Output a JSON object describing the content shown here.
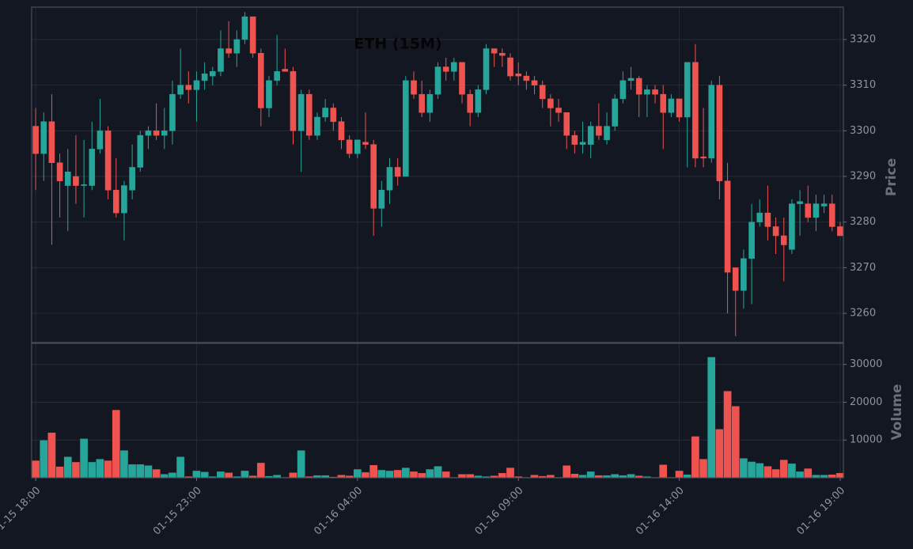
{
  "chart_data": {
    "type": "candlestick",
    "title": "ETH (15M)",
    "ylabel": "Price",
    "y2label": "Volume",
    "up_color": "#26a69a",
    "down_color": "#ef5350",
    "grid": true,
    "x": [
      "01-15 18:00",
      "01-15 18:15",
      "01-15 18:30",
      "01-15 18:45",
      "01-15 19:00",
      "01-15 19:15",
      "01-15 19:30",
      "01-15 19:45",
      "01-15 20:00",
      "01-15 20:15",
      "01-15 20:30",
      "01-15 20:45",
      "01-15 21:00",
      "01-15 21:15",
      "01-15 21:30",
      "01-15 21:45",
      "01-15 22:00",
      "01-15 22:15",
      "01-15 22:30",
      "01-15 22:45",
      "01-15 23:00",
      "01-15 23:15",
      "01-15 23:30",
      "01-15 23:45",
      "01-16 00:00",
      "01-16 00:15",
      "01-16 00:30",
      "01-16 00:45",
      "01-16 01:00",
      "01-16 01:15",
      "01-16 01:30",
      "01-16 01:45",
      "01-16 02:00",
      "01-16 02:15",
      "01-16 02:30",
      "01-16 02:45",
      "01-16 03:00",
      "01-16 03:15",
      "01-16 03:30",
      "01-16 03:45",
      "01-16 04:00",
      "01-16 04:15",
      "01-16 04:30",
      "01-16 04:45",
      "01-16 05:00",
      "01-16 05:15",
      "01-16 05:30",
      "01-16 05:45",
      "01-16 06:00",
      "01-16 06:15",
      "01-16 06:30",
      "01-16 06:45",
      "01-16 07:00",
      "01-16 07:15",
      "01-16 07:30",
      "01-16 07:45",
      "01-16 08:00",
      "01-16 08:15",
      "01-16 08:30",
      "01-16 08:45",
      "01-16 09:00",
      "01-16 09:15",
      "01-16 09:30",
      "01-16 09:45",
      "01-16 10:00",
      "01-16 10:15",
      "01-16 10:30",
      "01-16 10:45",
      "01-16 11:00",
      "01-16 11:15",
      "01-16 11:30",
      "01-16 11:45",
      "01-16 12:00",
      "01-16 12:15",
      "01-16 12:30",
      "01-16 12:45",
      "01-16 13:00",
      "01-16 13:15",
      "01-16 13:30",
      "01-16 13:45",
      "01-16 14:00",
      "01-16 14:15",
      "01-16 14:30",
      "01-16 14:45",
      "01-16 15:00",
      "01-16 15:15",
      "01-16 15:30",
      "01-16 15:45",
      "01-16 16:00",
      "01-16 16:15",
      "01-16 16:30",
      "01-16 16:45",
      "01-16 17:00",
      "01-16 17:15",
      "01-16 17:30",
      "01-16 17:45",
      "01-16 18:00",
      "01-16 18:15",
      "01-16 18:30",
      "01-16 18:45",
      "01-16 19:00"
    ],
    "open": [
      3301,
      3295,
      3302,
      3293,
      3288,
      3290,
      3288,
      3288,
      3296,
      3300,
      3287,
      3282,
      3287,
      3292,
      3299,
      3300,
      3299,
      3300,
      3308,
      3310,
      3309,
      3311,
      3312,
      3313,
      3318,
      3317,
      3320,
      3325,
      3317,
      3305,
      3311,
      3313.5,
      3313,
      3300,
      3308,
      3299,
      3303,
      3305,
      3302,
      3298,
      3295,
      3297.5,
      3297,
      3283,
      3287,
      3292,
      3290,
      3311,
      3308,
      3304,
      3308,
      3314,
      3313,
      3315,
      3308,
      3304,
      3309,
      3318,
      3317,
      3316,
      3312.5,
      3312,
      3311,
      3310,
      3307,
      3305,
      3304,
      3299,
      3297,
      3297,
      3301,
      3298,
      3301,
      3307,
      3311,
      3311.5,
      3308,
      3309,
      3308,
      3304,
      3307,
      3303,
      3315,
      3294.3,
      3294,
      3310,
      3289,
      3270,
      3265,
      3272,
      3280,
      3282,
      3279,
      3277,
      3274,
      3284,
      3284,
      3281,
      3283.5,
      3284,
      3279
    ],
    "high": [
      3305,
      3304,
      3308,
      3295,
      3296,
      3299,
      3298,
      3302,
      3307,
      3301,
      3294,
      3289,
      3297,
      3300,
      3301,
      3306,
      3305,
      3311,
      3318,
      3313,
      3313,
      3315,
      3314,
      3322,
      3324,
      3322,
      3326,
      3325,
      3318,
      3312,
      3321,
      3318,
      3314,
      3309,
      3309,
      3304,
      3307,
      3306,
      3303,
      3299,
      3298,
      3304,
      3298,
      3289,
      3294,
      3294,
      3312,
      3313,
      3311,
      3309,
      3315,
      3316,
      3316,
      3315,
      3309,
      3310,
      3319,
      3318,
      3318,
      3317,
      3315,
      3313,
      3312,
      3311,
      3308,
      3307,
      3304,
      3300,
      3302,
      3302,
      3306,
      3304,
      3308,
      3313,
      3314,
      3312,
      3310,
      3310,
      3310,
      3308,
      3307,
      3315,
      3319,
      3305,
      3311,
      3312,
      3293,
      3270,
      3274,
      3284,
      3285,
      3288,
      3281,
      3281,
      3285,
      3287,
      3288,
      3286,
      3286,
      3286,
      3280
    ],
    "low": [
      3287,
      3289,
      3275,
      3281,
      3278,
      3284,
      3281,
      3287,
      3295,
      3285,
      3281,
      3276,
      3285,
      3291,
      3296,
      3298,
      3296,
      3297,
      3307,
      3306,
      3302,
      3309,
      3310,
      3312,
      3316,
      3314,
      3319,
      3316,
      3301,
      3303,
      3310,
      3313,
      3297,
      3291,
      3298,
      3298,
      3302,
      3300,
      3296,
      3294,
      3294,
      3296,
      3277,
      3279,
      3284,
      3288,
      3290,
      3307,
      3303,
      3302,
      3307,
      3311,
      3311,
      3306,
      3301,
      3303,
      3308,
      3314,
      3314,
      3311,
      3310,
      3309,
      3308,
      3305,
      3301,
      3302,
      3296,
      3295,
      3295,
      3294,
      3298,
      3297,
      3300,
      3306,
      3309,
      3303,
      3303,
      3306,
      3296,
      3303,
      3302,
      3292,
      3292,
      3292,
      3293,
      3285,
      3260,
      3255,
      3261,
      3262,
      3279,
      3276,
      3273,
      3267,
      3273,
      3277,
      3280,
      3278,
      3282,
      3278,
      3277
    ],
    "close": [
      3295,
      3302,
      3293,
      3289,
      3291,
      3288,
      3288.2,
      3296,
      3300,
      3287,
      3282,
      3288,
      3292,
      3299,
      3300,
      3299,
      3300,
      3308,
      3310,
      3309,
      3311,
      3312.5,
      3313,
      3318,
      3317,
      3320,
      3325,
      3317,
      3305,
      3311,
      3313,
      3313,
      3300,
      3308,
      3299,
      3303,
      3305,
      3302,
      3298,
      3295,
      3298,
      3297,
      3283,
      3287,
      3292,
      3290,
      3311,
      3308,
      3304,
      3308,
      3314,
      3313,
      3315,
      3308,
      3304,
      3309,
      3318,
      3317,
      3316.5,
      3312,
      3312,
      3311,
      3310,
      3307,
      3305,
      3304,
      3299,
      3297,
      3297.5,
      3301,
      3299,
      3301,
      3307,
      3311,
      3311.5,
      3308,
      3309,
      3308,
      3304,
      3307,
      3303,
      3315,
      3294,
      3294,
      3310,
      3289,
      3269,
      3265,
      3272,
      3280,
      3282,
      3279,
      3277,
      3275,
      3284,
      3284.5,
      3281,
      3284,
      3284,
      3279,
      3277
    ],
    "volume": [
      4600,
      10000,
      12000,
      3000,
      5600,
      4200,
      10400,
      4200,
      5000,
      4600,
      18000,
      7300,
      3600,
      3600,
      3300,
      2300,
      1000,
      1400,
      5600,
      400,
      1900,
      1600,
      400,
      1700,
      1400,
      400,
      1900,
      600,
      4000,
      500,
      800,
      200,
      1400,
      7300,
      400,
      700,
      700,
      300,
      800,
      600,
      2300,
      1500,
      3400,
      2100,
      1900,
      2100,
      2700,
      1700,
      1300,
      2300,
      3100,
      1700,
      200,
      1000,
      1000,
      600,
      400,
      600,
      1300,
      2700,
      400,
      200,
      800,
      500,
      800,
      200,
      3300,
      1100,
      800,
      1700,
      700,
      700,
      1000,
      700,
      1000,
      600,
      400,
      200,
      3500,
      200,
      1900,
      900,
      11000,
      5000,
      32000,
      12900,
      23000,
      19000,
      5200,
      4300,
      3900,
      3100,
      2300,
      4800,
      3800,
      1700,
      2500,
      800,
      800,
      900,
      1300
    ],
    "ylim": [
      3253.6,
      3327.1
    ],
    "yticks": [
      3260,
      3270,
      3280,
      3290,
      3300,
      3310,
      3320
    ],
    "y2lim": [
      0,
      35600
    ],
    "y2ticks": [
      10000,
      20000,
      30000
    ],
    "xticks": [
      "01-15 18:00",
      "01-15 23:00",
      "01-16 04:00",
      "01-16 09:00",
      "01-16 14:00",
      "01-16 19:00"
    ]
  }
}
